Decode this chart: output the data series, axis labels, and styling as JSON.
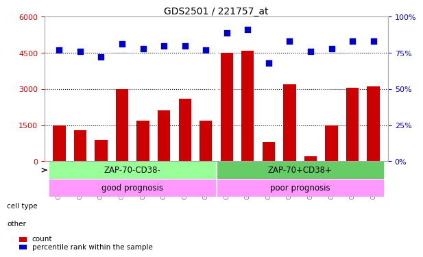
{
  "title": "GDS2501 / 221757_at",
  "samples": [
    "GSM99339",
    "GSM99340",
    "GSM99341",
    "GSM99342",
    "GSM99343",
    "GSM99344",
    "GSM99345",
    "GSM99346",
    "GSM99347",
    "GSM99348",
    "GSM99349",
    "GSM99350",
    "GSM99351",
    "GSM99352",
    "GSM99353",
    "GSM99354"
  ],
  "counts": [
    1500,
    1300,
    900,
    3000,
    1700,
    2100,
    2600,
    1700,
    4500,
    4600,
    800,
    3200,
    200,
    1500,
    3050,
    3100
  ],
  "percentile_ranks": [
    77,
    76,
    72,
    81,
    78,
    80,
    80,
    77,
    89,
    91,
    68,
    83,
    76,
    78,
    83,
    83
  ],
  "bar_color": "#cc0000",
  "dot_color": "#0000cc",
  "left_ylim": [
    0,
    6000
  ],
  "right_ylim": [
    0,
    100
  ],
  "left_yticks": [
    0,
    1500,
    3000,
    4500,
    6000
  ],
  "right_yticks": [
    0,
    25,
    50,
    75,
    100
  ],
  "left_yticklabels": [
    "0",
    "1500",
    "3000",
    "4500",
    "6000"
  ],
  "right_yticklabels": [
    "0%",
    "25%",
    "50%",
    "75%",
    "100%"
  ],
  "hlines": [
    1500,
    3000,
    4500
  ],
  "cell_type_labels": [
    "ZAP-70-CD38-",
    "ZAP-70+CD38+"
  ],
  "cell_type_colors": [
    "#99ff99",
    "#66cc66"
  ],
  "other_labels": [
    "good prognosis",
    "poor prognosis"
  ],
  "other_color": "#ff99ff",
  "group_split": 8,
  "legend_count_label": "count",
  "legend_pct_label": "percentile rank within the sample",
  "bg_color": "#ffffff",
  "tick_label_color_left": "#cc0000",
  "tick_label_color_right": "#0000cc",
  "tick_label_color_labels": "#666666"
}
